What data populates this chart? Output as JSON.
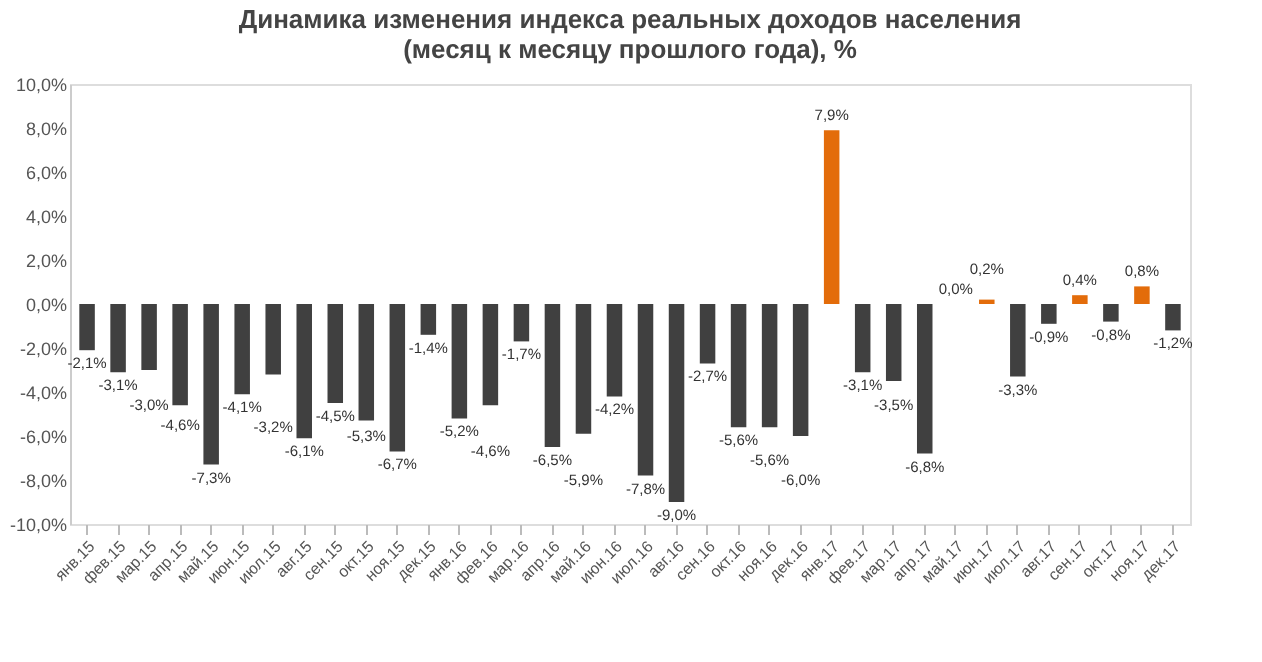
{
  "chart_data": {
    "type": "bar",
    "title": "Динамика изменения индекса реальных доходов населения",
    "subtitle": "(месяц к месяцу прошлого года), %",
    "categories": [
      "янв.15",
      "фев.15",
      "мар.15",
      "апр.15",
      "май.15",
      "июн.15",
      "июл.15",
      "авг.15",
      "сен.15",
      "окт.15",
      "ноя.15",
      "дек.15",
      "янв.16",
      "фев.16",
      "мар.16",
      "апр.16",
      "май.16",
      "июн.16",
      "июл.16",
      "авг.16",
      "сен.16",
      "окт.16",
      "ноя.16",
      "дек.16",
      "янв.17",
      "фев.17",
      "мар.17",
      "апр.17",
      "май.17",
      "июн.17",
      "июл.17",
      "авг.17",
      "сен.17",
      "окт.17",
      "ноя.17",
      "дек.17"
    ],
    "values": [
      -2.1,
      -3.1,
      -3.0,
      -4.6,
      -7.3,
      -4.1,
      -3.2,
      -6.1,
      -4.5,
      -5.3,
      -6.7,
      -1.4,
      -5.2,
      -4.6,
      -1.7,
      -6.5,
      -5.9,
      -4.2,
      -7.8,
      -9.0,
      -2.7,
      -5.6,
      -5.6,
      -6.0,
      7.9,
      -3.1,
      -3.5,
      -6.8,
      0.0,
      0.2,
      -3.3,
      -0.9,
      0.4,
      -0.8,
      0.8,
      -1.2
    ],
    "value_labels": [
      "-2,1%",
      "-3,1%",
      "-3,0%",
      "-4,6%",
      "-7,3%",
      "-4,1%",
      "-3,2%",
      "-6,1%",
      "-4,5%",
      "-5,3%",
      "-6,7%",
      "-1,4%",
      "-5,2%",
      "-4,6%",
      "-1,7%",
      "-6,5%",
      "-5,9%",
      "-4,2%",
      "-7,8%",
      "-9,0%",
      "-2,7%",
      "-5,6%",
      "-5,6%",
      "-6,0%",
      "7,9%",
      "-3,1%",
      "-3,5%",
      "-6,8%",
      "0,0%",
      "0,2%",
      "-3,3%",
      "-0,9%",
      "0,4%",
      "-0,8%",
      "0,8%",
      "-1,2%"
    ],
    "colors": [
      "#404040",
      "#404040",
      "#404040",
      "#404040",
      "#404040",
      "#404040",
      "#404040",
      "#404040",
      "#404040",
      "#404040",
      "#404040",
      "#404040",
      "#404040",
      "#404040",
      "#404040",
      "#404040",
      "#404040",
      "#404040",
      "#404040",
      "#404040",
      "#404040",
      "#404040",
      "#404040",
      "#404040",
      "#e36c0a",
      "#404040",
      "#404040",
      "#404040",
      "#e36c0a",
      "#e36c0a",
      "#404040",
      "#404040",
      "#e36c0a",
      "#404040",
      "#e36c0a",
      "#404040"
    ],
    "ylim": [
      -10,
      10
    ],
    "yticks": [
      {
        "value": -10,
        "label": "-10,0%"
      },
      {
        "value": -8,
        "label": "-8,0%"
      },
      {
        "value": -6,
        "label": "-6,0%"
      },
      {
        "value": -4,
        "label": "-4,0%"
      },
      {
        "value": -2,
        "label": "-2,0%"
      },
      {
        "value": 0,
        "label": "0,0%"
      },
      {
        "value": 2,
        "label": "2,0%"
      },
      {
        "value": 4,
        "label": "4,0%"
      },
      {
        "value": 6,
        "label": "6,0%"
      },
      {
        "value": 8,
        "label": "8,0%"
      },
      {
        "value": 10,
        "label": "10,0%"
      }
    ],
    "grid": false,
    "legend": false
  }
}
